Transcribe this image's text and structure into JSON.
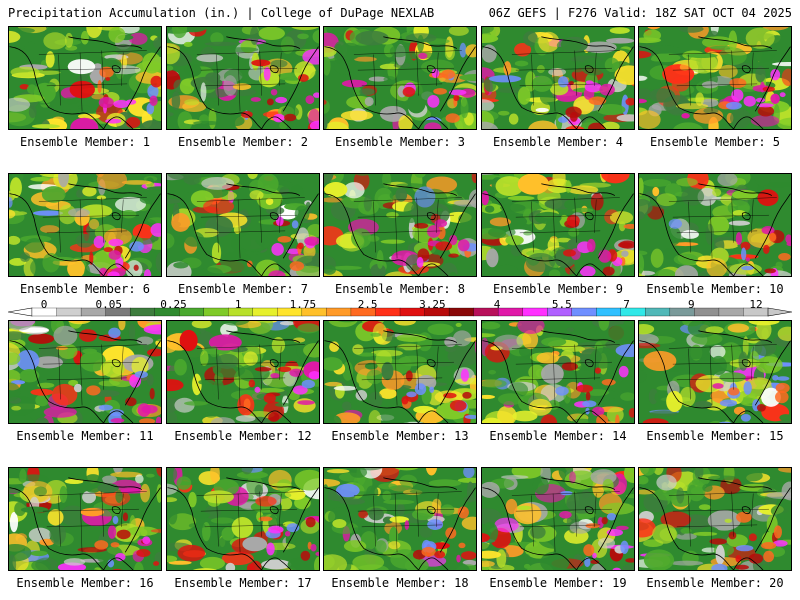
{
  "header": {
    "title": "Precipitation Accumulation (in.) | College of DuPage NEXLAB",
    "valid": "06Z GEFS | F276 Valid: 18Z SAT OCT 04 2025"
  },
  "label_prefix": "Ensemble Member: ",
  "members": [
    "1",
    "2",
    "3",
    "4",
    "5",
    "6",
    "7",
    "8",
    "9",
    "10",
    "11",
    "12",
    "13",
    "14",
    "15",
    "16",
    "17",
    "18",
    "19",
    "20"
  ],
  "colorbar": {
    "labels": [
      "0",
      "0.05",
      "0.25",
      "1",
      "1.75",
      "2.5",
      "3.25",
      "4",
      "5.5",
      "7",
      "9",
      "12"
    ],
    "colors": [
      "#ffffff",
      "#cfcfcf",
      "#a8a8a8",
      "#7a7a7a",
      "#3d7d3d",
      "#2f8a2f",
      "#4aa82e",
      "#7fca28",
      "#b8e02a",
      "#e6f02c",
      "#ffe42c",
      "#ffc02a",
      "#ff9a28",
      "#ff6a20",
      "#ff3018",
      "#e01010",
      "#b80a0a",
      "#8a0808",
      "#b8105a",
      "#e018a8",
      "#ff30ff",
      "#b060ff",
      "#6f8fff",
      "#30c0ff",
      "#30e8e8",
      "#50b8b8",
      "#7a9a9a",
      "#909090",
      "#a8a8a8",
      "#c8c8c8"
    ]
  }
}
